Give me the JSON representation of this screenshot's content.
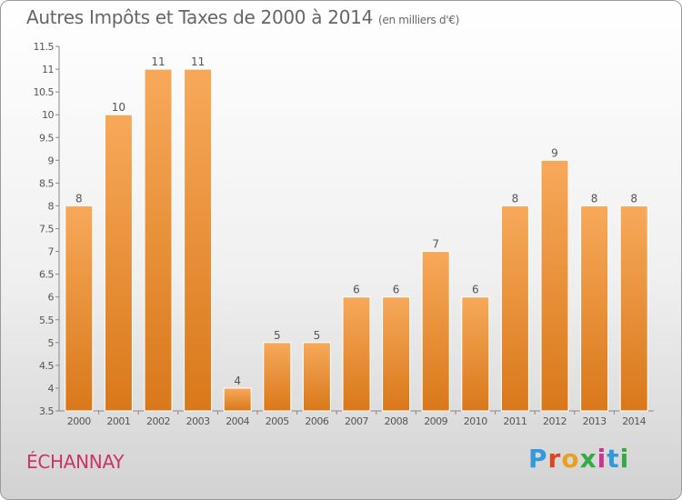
{
  "header": {
    "title": "Autres Impôts et Taxes de 2000 à 2014",
    "unit": "(en milliers d'€)"
  },
  "footer": {
    "town": "ÉCHANNAY",
    "brand_letters": [
      "P",
      "r",
      "o",
      "x",
      "i",
      "t",
      "i"
    ]
  },
  "colors": {
    "bar_top": "#f7a95a",
    "bar_bottom": "#d9781a",
    "axis": "#888888",
    "text": "#555555",
    "town": "#cc3366"
  },
  "chart_data": {
    "type": "bar",
    "title": "Autres Impôts et Taxes de 2000 à 2014",
    "subtitle": "(en milliers d'€)",
    "categories": [
      "2000",
      "2001",
      "2002",
      "2003",
      "2004",
      "2005",
      "2006",
      "2007",
      "2008",
      "2009",
      "2010",
      "2011",
      "2012",
      "2013",
      "2014"
    ],
    "values": [
      8,
      10,
      11,
      11,
      4,
      5,
      5,
      6,
      6,
      7,
      6,
      8,
      9,
      8,
      8
    ],
    "data_labels": [
      "8",
      "10",
      "11",
      "11",
      "4",
      "5",
      "5",
      "6",
      "6",
      "7",
      "6",
      "8",
      "9",
      "8",
      "8"
    ],
    "ylim": [
      3.5,
      11.5
    ],
    "yticks": [
      3.5,
      4,
      4.5,
      5,
      5.5,
      6,
      6.5,
      7,
      7.5,
      8,
      8.5,
      9,
      9.5,
      10,
      10.5,
      11,
      11.5
    ],
    "ytick_labels": [
      "3.5",
      "4",
      "4.5",
      "5",
      "5.5",
      "6",
      "6.5",
      "7",
      "7.5",
      "8",
      "8.5",
      "9",
      "9.5",
      "10",
      "10.5",
      "11",
      "11.5"
    ],
    "grid": false,
    "legend": "none"
  }
}
